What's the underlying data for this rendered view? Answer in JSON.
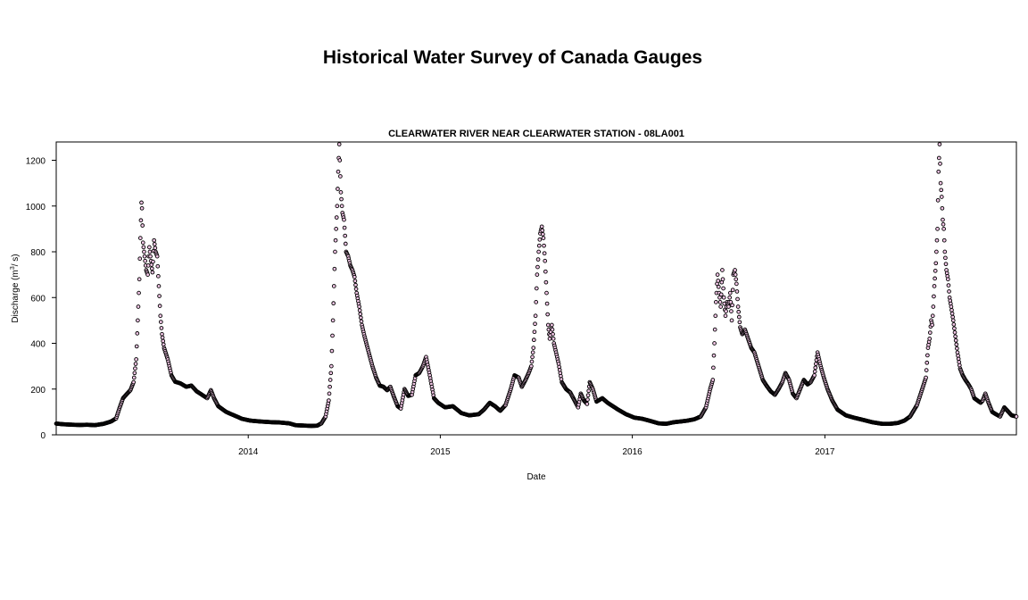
{
  "page_title": "Historical Water Survey of Canada Gauges",
  "chart_data": {
    "type": "scatter",
    "title": "CLEARWATER RIVER NEAR CLEARWATER STATION - 08LA001",
    "xlabel": "Date",
    "ylabel": "Discharge (m³/ s)",
    "ylabel_parts": {
      "prefix": "Discharge (m",
      "superscript": "3",
      "suffix": "/ s)"
    },
    "xlim": [
      "2013-01-01",
      "2017-12-31"
    ],
    "ylim": [
      0,
      1280
    ],
    "x_ticks": [
      {
        "date": "2014-01-01",
        "label": "2014"
      },
      {
        "date": "2015-01-01",
        "label": "2015"
      },
      {
        "date": "2016-01-01",
        "label": "2016"
      },
      {
        "date": "2017-01-01",
        "label": "2017"
      }
    ],
    "y_ticks": [
      0,
      200,
      400,
      600,
      800,
      1000,
      1200
    ],
    "grid": false,
    "marker": {
      "shape": "open-circle",
      "stroke": "#000000",
      "fill": "#f2c6e6"
    },
    "points": [
      [
        "2013-01-01",
        49
      ],
      [
        "2013-01-15",
        46
      ],
      [
        "2013-02-01",
        44
      ],
      [
        "2013-02-15",
        43
      ],
      [
        "2013-03-01",
        44
      ],
      [
        "2013-03-15",
        42
      ],
      [
        "2013-04-01",
        48
      ],
      [
        "2013-04-15",
        58
      ],
      [
        "2013-04-25",
        72
      ],
      [
        "2013-05-01",
        115
      ],
      [
        "2013-05-08",
        160
      ],
      [
        "2013-05-15",
        178
      ],
      [
        "2013-05-22",
        195
      ],
      [
        "2013-05-28",
        230
      ],
      [
        "2013-06-02",
        330
      ],
      [
        "2013-06-05",
        500
      ],
      [
        "2013-06-08",
        680
      ],
      [
        "2013-06-10",
        860
      ],
      [
        "2013-06-12",
        1015
      ],
      [
        "2013-06-13",
        990
      ],
      [
        "2013-06-15",
        840
      ],
      [
        "2013-06-18",
        780
      ],
      [
        "2013-06-21",
        720
      ],
      [
        "2013-06-24",
        700
      ],
      [
        "2013-06-27",
        820
      ],
      [
        "2013-06-30",
        760
      ],
      [
        "2013-07-03",
        710
      ],
      [
        "2013-07-06",
        850
      ],
      [
        "2013-07-09",
        800
      ],
      [
        "2013-07-12",
        780
      ],
      [
        "2013-07-15",
        650
      ],
      [
        "2013-07-18",
        520
      ],
      [
        "2013-07-21",
        440
      ],
      [
        "2013-07-25",
        380
      ],
      [
        "2013-08-01",
        330
      ],
      [
        "2013-08-08",
        260
      ],
      [
        "2013-08-15",
        232
      ],
      [
        "2013-08-25",
        225
      ],
      [
        "2013-09-05",
        210
      ],
      [
        "2013-09-15",
        215
      ],
      [
        "2013-09-25",
        190
      ],
      [
        "2013-10-05",
        175
      ],
      [
        "2013-10-15",
        160
      ],
      [
        "2013-10-22",
        195
      ],
      [
        "2013-10-28",
        160
      ],
      [
        "2013-11-05",
        125
      ],
      [
        "2013-11-20",
        100
      ],
      [
        "2013-12-05",
        85
      ],
      [
        "2013-12-20",
        70
      ],
      [
        "2014-01-05",
        62
      ],
      [
        "2014-01-25",
        58
      ],
      [
        "2014-02-15",
        55
      ],
      [
        "2014-03-01",
        54
      ],
      [
        "2014-03-20",
        50
      ],
      [
        "2014-04-01",
        42
      ],
      [
        "2014-04-20",
        40
      ],
      [
        "2014-05-01",
        39
      ],
      [
        "2014-05-12",
        40
      ],
      [
        "2014-05-20",
        50
      ],
      [
        "2014-05-28",
        80
      ],
      [
        "2014-06-03",
        150
      ],
      [
        "2014-06-08",
        300
      ],
      [
        "2014-06-11",
        500
      ],
      [
        "2014-06-13",
        650
      ],
      [
        "2014-06-15",
        800
      ],
      [
        "2014-06-17",
        900
      ],
      [
        "2014-06-19",
        1000
      ],
      [
        "2014-06-21",
        1150
      ],
      [
        "2014-06-23",
        1270
      ],
      [
        "2014-06-26",
        1060
      ],
      [
        "2014-06-29",
        970
      ],
      [
        "2014-07-02",
        940
      ],
      [
        "2014-07-06",
        800
      ],
      [
        "2014-07-10",
        780
      ],
      [
        "2014-07-14",
        740
      ],
      [
        "2014-07-18",
        720
      ],
      [
        "2014-07-22",
        690
      ],
      [
        "2014-07-26",
        620
      ],
      [
        "2014-07-31",
        560
      ],
      [
        "2014-08-05",
        480
      ],
      [
        "2014-08-10",
        430
      ],
      [
        "2014-08-18",
        360
      ],
      [
        "2014-08-25",
        300
      ],
      [
        "2014-09-01",
        250
      ],
      [
        "2014-09-08",
        215
      ],
      [
        "2014-09-15",
        210
      ],
      [
        "2014-09-22",
        195
      ],
      [
        "2014-09-28",
        210
      ],
      [
        "2014-10-05",
        165
      ],
      [
        "2014-10-12",
        125
      ],
      [
        "2014-10-18",
        115
      ],
      [
        "2014-10-25",
        200
      ],
      [
        "2014-11-01",
        170
      ],
      [
        "2014-11-08",
        175
      ],
      [
        "2014-11-15",
        260
      ],
      [
        "2014-11-22",
        270
      ],
      [
        "2014-11-29",
        300
      ],
      [
        "2014-12-05",
        340
      ],
      [
        "2014-12-12",
        260
      ],
      [
        "2014-12-20",
        160
      ],
      [
        "2014-12-28",
        140
      ],
      [
        "2015-01-10",
        120
      ],
      [
        "2015-01-25",
        125
      ],
      [
        "2015-02-10",
        95
      ],
      [
        "2015-02-25",
        85
      ],
      [
        "2015-03-15",
        90
      ],
      [
        "2015-03-25",
        110
      ],
      [
        "2015-04-05",
        140
      ],
      [
        "2015-04-15",
        125
      ],
      [
        "2015-04-25",
        105
      ],
      [
        "2015-05-05",
        130
      ],
      [
        "2015-05-15",
        200
      ],
      [
        "2015-05-22",
        260
      ],
      [
        "2015-05-30",
        250
      ],
      [
        "2015-06-05",
        210
      ],
      [
        "2015-06-12",
        240
      ],
      [
        "2015-06-18",
        270
      ],
      [
        "2015-06-23",
        300
      ],
      [
        "2015-06-27",
        380
      ],
      [
        "2015-07-01",
        520
      ],
      [
        "2015-07-04",
        700
      ],
      [
        "2015-07-07",
        800
      ],
      [
        "2015-07-10",
        880
      ],
      [
        "2015-07-13",
        910
      ],
      [
        "2015-07-16",
        860
      ],
      [
        "2015-07-19",
        760
      ],
      [
        "2015-07-22",
        620
      ],
      [
        "2015-07-25",
        480
      ],
      [
        "2015-07-28",
        420
      ],
      [
        "2015-08-01",
        480
      ],
      [
        "2015-08-05",
        400
      ],
      [
        "2015-08-09",
        360
      ],
      [
        "2015-08-14",
        310
      ],
      [
        "2015-08-20",
        230
      ],
      [
        "2015-08-28",
        200
      ],
      [
        "2015-09-05",
        185
      ],
      [
        "2015-09-12",
        155
      ],
      [
        "2015-09-20",
        120
      ],
      [
        "2015-09-25",
        180
      ],
      [
        "2015-10-01",
        150
      ],
      [
        "2015-10-07",
        135
      ],
      [
        "2015-10-12",
        230
      ],
      [
        "2015-10-18",
        200
      ],
      [
        "2015-10-25",
        145
      ],
      [
        "2015-11-05",
        160
      ],
      [
        "2015-11-15",
        140
      ],
      [
        "2015-11-25",
        125
      ],
      [
        "2015-12-05",
        110
      ],
      [
        "2015-12-20",
        90
      ],
      [
        "2016-01-05",
        75
      ],
      [
        "2016-01-20",
        70
      ],
      [
        "2016-02-05",
        60
      ],
      [
        "2016-02-20",
        50
      ],
      [
        "2016-03-05",
        48
      ],
      [
        "2016-03-20",
        55
      ],
      [
        "2016-04-01",
        58
      ],
      [
        "2016-04-15",
        62
      ],
      [
        "2016-04-28",
        68
      ],
      [
        "2016-05-10",
        80
      ],
      [
        "2016-05-20",
        120
      ],
      [
        "2016-05-28",
        200
      ],
      [
        "2016-06-02",
        240
      ],
      [
        "2016-06-05",
        400
      ],
      [
        "2016-06-08",
        580
      ],
      [
        "2016-06-11",
        700
      ],
      [
        "2016-06-14",
        620
      ],
      [
        "2016-06-17",
        560
      ],
      [
        "2016-06-20",
        720
      ],
      [
        "2016-06-23",
        600
      ],
      [
        "2016-06-26",
        520
      ],
      [
        "2016-06-29",
        580
      ],
      [
        "2016-07-02",
        560
      ],
      [
        "2016-07-05",
        620
      ],
      [
        "2016-07-08",
        500
      ],
      [
        "2016-07-11",
        700
      ],
      [
        "2016-07-14",
        720
      ],
      [
        "2016-07-17",
        660
      ],
      [
        "2016-07-20",
        560
      ],
      [
        "2016-07-24",
        470
      ],
      [
        "2016-07-28",
        440
      ],
      [
        "2016-08-02",
        460
      ],
      [
        "2016-08-08",
        420
      ],
      [
        "2016-08-14",
        380
      ],
      [
        "2016-08-20",
        360
      ],
      [
        "2016-08-28",
        300
      ],
      [
        "2016-09-05",
        240
      ],
      [
        "2016-09-12",
        215
      ],
      [
        "2016-09-20",
        190
      ],
      [
        "2016-09-28",
        175
      ],
      [
        "2016-10-05",
        200
      ],
      [
        "2016-10-12",
        230
      ],
      [
        "2016-10-18",
        270
      ],
      [
        "2016-10-25",
        240
      ],
      [
        "2016-11-01",
        180
      ],
      [
        "2016-11-08",
        160
      ],
      [
        "2016-11-15",
        200
      ],
      [
        "2016-11-22",
        240
      ],
      [
        "2016-11-29",
        220
      ],
      [
        "2016-12-05",
        230
      ],
      [
        "2016-12-12",
        260
      ],
      [
        "2016-12-18",
        360
      ],
      [
        "2016-12-24",
        300
      ],
      [
        "2016-12-30",
        250
      ],
      [
        "2017-01-06",
        200
      ],
      [
        "2017-01-15",
        150
      ],
      [
        "2017-01-25",
        110
      ],
      [
        "2017-02-10",
        85
      ],
      [
        "2017-02-25",
        75
      ],
      [
        "2017-03-15",
        65
      ],
      [
        "2017-04-01",
        55
      ],
      [
        "2017-04-20",
        48
      ],
      [
        "2017-05-05",
        48
      ],
      [
        "2017-05-20",
        52
      ],
      [
        "2017-06-01",
        62
      ],
      [
        "2017-06-12",
        80
      ],
      [
        "2017-06-25",
        130
      ],
      [
        "2017-07-05",
        200
      ],
      [
        "2017-07-12",
        250
      ],
      [
        "2017-07-16",
        380
      ],
      [
        "2017-07-19",
        420
      ],
      [
        "2017-07-22",
        500
      ],
      [
        "2017-07-24",
        480
      ],
      [
        "2017-07-26",
        560
      ],
      [
        "2017-07-28",
        650
      ],
      [
        "2017-07-31",
        750
      ],
      [
        "2017-08-03",
        900
      ],
      [
        "2017-08-05",
        1150
      ],
      [
        "2017-08-07",
        1270
      ],
      [
        "2017-08-09",
        1100
      ],
      [
        "2017-08-11",
        1040
      ],
      [
        "2017-08-13",
        940
      ],
      [
        "2017-08-15",
        900
      ],
      [
        "2017-08-17",
        800
      ],
      [
        "2017-08-20",
        720
      ],
      [
        "2017-08-23",
        680
      ],
      [
        "2017-08-26",
        600
      ],
      [
        "2017-08-29",
        560
      ],
      [
        "2017-09-02",
        500
      ],
      [
        "2017-09-06",
        430
      ],
      [
        "2017-09-10",
        360
      ],
      [
        "2017-09-15",
        290
      ],
      [
        "2017-09-20",
        260
      ],
      [
        "2017-09-25",
        240
      ],
      [
        "2017-10-01",
        220
      ],
      [
        "2017-10-06",
        200
      ],
      [
        "2017-10-12",
        160
      ],
      [
        "2017-10-18",
        150
      ],
      [
        "2017-10-24",
        140
      ],
      [
        "2017-10-28",
        150
      ],
      [
        "2017-11-02",
        180
      ],
      [
        "2017-11-08",
        140
      ],
      [
        "2017-11-15",
        100
      ],
      [
        "2017-11-22",
        90
      ],
      [
        "2017-11-30",
        80
      ],
      [
        "2017-12-08",
        120
      ],
      [
        "2017-12-16",
        100
      ],
      [
        "2017-12-22",
        85
      ],
      [
        "2017-12-31",
        80
      ]
    ]
  }
}
